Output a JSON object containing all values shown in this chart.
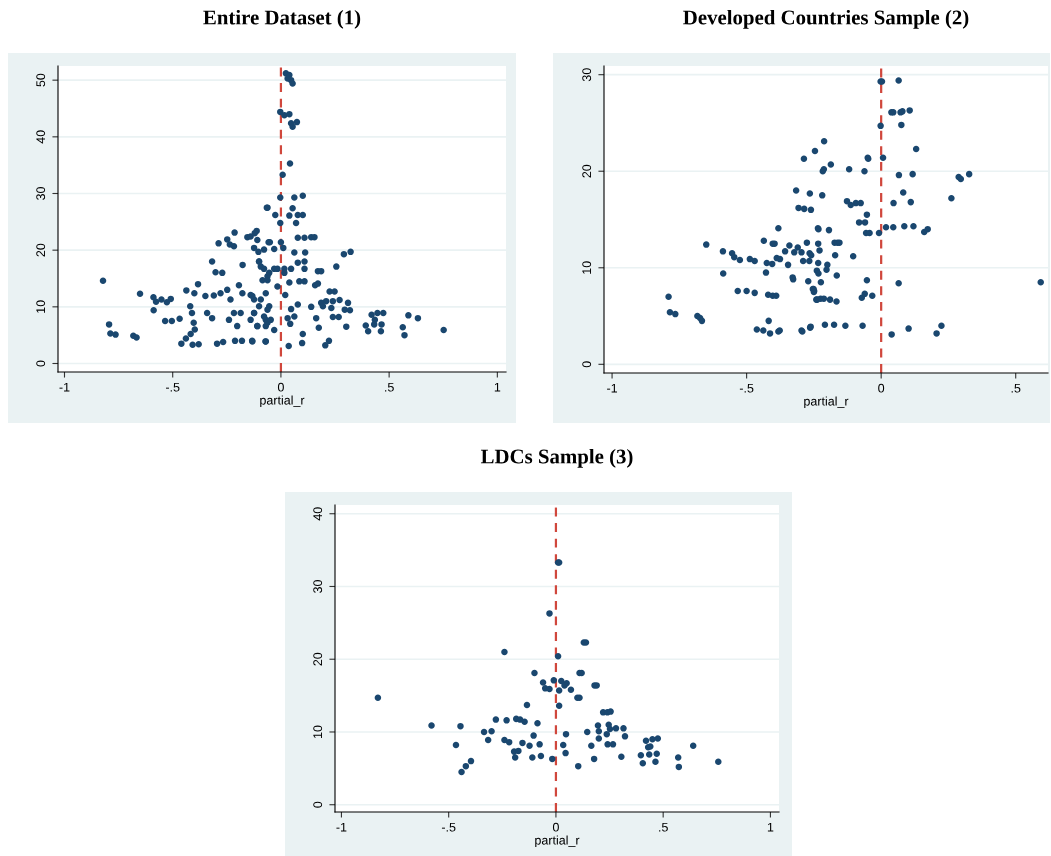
{
  "chart_data": [
    {
      "type": "scatter",
      "title": "Entire Dataset (1)",
      "xlabel": "partial_r",
      "color": "#1a476f",
      "marker": "circle",
      "grid": "y",
      "xlim": [
        -1.03,
        1.04
      ],
      "ylim": [
        -1.5,
        52.5
      ],
      "xticks": [
        {
          "value": -1,
          "label": "-1"
        },
        {
          "value": -0.5,
          "label": "-.5"
        },
        {
          "value": 0,
          "label": "0"
        },
        {
          "value": 0.5,
          "label": ".5"
        },
        {
          "value": 1,
          "label": "1"
        }
      ],
      "yticks": [
        0,
        10,
        20,
        30,
        40,
        50
      ],
      "ref_lines": [
        {
          "axis": "x",
          "value": 0,
          "color": "#d0473c",
          "line_style": "dashed"
        }
      ],
      "x": [
        -0.822,
        -0.794,
        -0.788,
        -0.764,
        -0.682,
        -0.667,
        -0.651,
        -0.589,
        -0.588,
        -0.577,
        -0.552,
        -0.527,
        -0.509,
        -0.535,
        -0.504,
        -0.468,
        -0.437,
        -0.46,
        -0.439,
        -0.417,
        -0.408,
        -0.38,
        -0.403,
        -0.398,
        -0.383,
        -0.4,
        -0.419,
        -0.411,
        -0.349,
        -0.31,
        -0.279,
        -0.341,
        -0.318,
        -0.318,
        -0.288,
        -0.302,
        -0.271,
        -0.295,
        -0.267,
        -0.248,
        -0.236,
        -0.217,
        -0.214,
        -0.248,
        -0.233,
        -0.217,
        -0.24,
        -0.202,
        -0.212,
        -0.18,
        -0.133,
        -0.071,
        -0.194,
        -0.178,
        -0.14,
        -0.124,
        -0.101,
        -0.177,
        -0.155,
        -0.14,
        -0.112,
        -0.104,
        -0.101,
        -0.14,
        -0.109,
        -0.07,
        -0.186,
        -0.124,
        -0.062,
        -0.057,
        -0.093,
        -0.062,
        -0.07,
        -0.054,
        -0.062,
        0.023,
        0.039,
        0.047,
        0.054,
        0.031,
        -0.003,
        0.016,
        0.039,
        0.054,
        0.074,
        0.047,
        0.042,
        0.008,
        -0.003,
        0.062,
        0.101,
        -0.065,
        0.054,
        -0.026,
        0.039,
        0.078,
        0.101,
        -0.003,
        0.07,
        0.078,
        0.109,
        0.14,
        0.155,
        0,
        0.011,
        -0.051,
        -0.121,
        -0.109,
        0.291,
        0.322,
        0.112,
        0.062,
        -0.078,
        -0.031,
        -0.124,
        0.078,
        0.109,
        0.256,
        0.171,
        0.186,
        -0.101,
        -0.078,
        -0.031,
        0.016,
        0.047,
        -0.054,
        -0.016,
        0.109,
        0.016,
        -0.085,
        -0.062,
        -0.016,
        0.039,
        0.085,
        0.109,
        0.158,
        0.171,
        0.225,
        0.248,
        0.209,
        0.24,
        0.271,
        0.31,
        0.186,
        0.14,
        0.078,
        -0.132,
        -0.093,
        -0.124,
        -0.078,
        -0.062,
        -0.047,
        -0.109,
        -0.07,
        -0.031,
        0.031,
        0.062,
        0.043,
        0.02,
        0.047,
        0.194,
        0.233,
        0.24,
        0.267,
        0.295,
        0.319,
        0.163,
        0.175,
        0.302,
        0.419,
        0.446,
        0.473,
        0.434,
        0.392,
        0.403,
        0.431,
        0.462,
        0.465,
        0.589,
        0.633,
        0.563,
        0.571,
        0.752,
        0.036,
        0.101,
        0.098,
        0.205,
        0.222,
        -0.132,
        -0.07
      ],
      "values": [
        14.6,
        6.9,
        5.3,
        5.1,
        4.9,
        4.6,
        12.3,
        11.7,
        9.4,
        10.9,
        11.3,
        10.8,
        11.4,
        7.5,
        7.5,
        7.9,
        12.9,
        3.5,
        4.4,
        5.2,
        3.3,
        3.4,
        7.2,
        6.0,
        14.0,
        12.4,
        10.1,
        8.9,
        11.9,
        12.0,
        12.4,
        8.9,
        8.0,
        18.0,
        21.2,
        16.1,
        16.0,
        3.5,
        3.8,
        21.9,
        21.0,
        20.7,
        23.1,
        13.0,
        11.3,
        8.9,
        7.7,
        6.6,
        4.0,
        4.0,
        4.0,
        3.9,
        13.8,
        12.4,
        12.1,
        11.3,
        10.1,
        17.4,
        22.3,
        22.4,
        23.4,
        19.7,
        18.0,
        7.7,
        6.6,
        7.7,
        8.9,
        8.9,
        27.5,
        21.4,
        17.1,
        15.4,
        12.4,
        10.1,
        7.2,
        51.2,
        50.9,
        50.0,
        49.4,
        50.3,
        44.4,
        43.8,
        44.0,
        41.8,
        42.6,
        42.4,
        35.3,
        33.3,
        29.3,
        29.3,
        29.6,
        27.5,
        27.4,
        26.2,
        26.1,
        26.2,
        26.2,
        24.8,
        24.8,
        22.2,
        22.2,
        22.3,
        22.3,
        21.4,
        20.4,
        21.4,
        23.0,
        21.8,
        19.3,
        19.7,
        19.6,
        19.6,
        20.1,
        20.2,
        20.4,
        17.8,
        18.0,
        17.1,
        16.3,
        16.3,
        18.0,
        16.7,
        16.7,
        16.7,
        16.7,
        16.0,
        16.7,
        16.7,
        16.0,
        14.7,
        14.7,
        13.6,
        14.3,
        14.5,
        14.5,
        13.8,
        14.1,
        12.7,
        12.7,
        11.0,
        11.0,
        11.2,
        10.7,
        10.7,
        10.0,
        10.4,
        11.9,
        11.3,
        8.9,
        8.3,
        9.5,
        7.7,
        6.6,
        6.6,
        5.9,
        8.0,
        8.3,
        7.0,
        12.1,
        9.6,
        10.1,
        9.8,
        8.2,
        8.2,
        9.5,
        9.4,
        8.0,
        6.3,
        6.5,
        8.6,
        8.9,
        8.9,
        7.7,
        6.7,
        5.7,
        6.9,
        5.7,
        6.9,
        8.5,
        8.0,
        6.4,
        5.0,
        5.9,
        3.1,
        5.2,
        3.6,
        3.2,
        4.0,
        3.9,
        3.9
      ]
    },
    {
      "type": "scatter",
      "title": "Developed Countries Sample (2)",
      "xlabel": "partial_r",
      "color": "#1a476f",
      "marker": "circle",
      "grid": "y",
      "xlim": [
        -1.03,
        0.62
      ],
      "ylim": [
        -0.9,
        30.9
      ],
      "xticks": [
        {
          "value": -1,
          "label": "-1"
        },
        {
          "value": -0.5,
          "label": "-.5"
        },
        {
          "value": 0,
          "label": "0"
        },
        {
          "value": 0.5,
          "label": ".5"
        }
      ],
      "yticks": [
        0,
        10,
        20,
        30
      ],
      "ref_lines": [
        {
          "axis": "x",
          "value": 0,
          "color": "#d0473c",
          "line_style": "dashed"
        }
      ],
      "x": [
        -0.79,
        -0.785,
        -0.765,
        -0.683,
        -0.673,
        -0.666,
        -0.65,
        -0.588,
        -0.587,
        -0.554,
        -0.546,
        -0.525,
        -0.533,
        -0.5,
        -0.47,
        -0.488,
        -0.47,
        -0.436,
        -0.425,
        -0.405,
        -0.428,
        -0.403,
        -0.396,
        -0.42,
        -0.403,
        -0.39,
        -0.418,
        -0.462,
        -0.438,
        -0.413,
        -0.382,
        -0.377,
        -0.382,
        -0.388,
        -0.376,
        -0.346,
        -0.357,
        -0.341,
        -0.323,
        -0.31,
        -0.296,
        -0.329,
        -0.327,
        -0.316,
        -0.307,
        -0.286,
        -0.261,
        -0.287,
        -0.246,
        -0.265,
        -0.276,
        -0.266,
        -0.26,
        -0.29,
        -0.267,
        -0.271,
        -0.251,
        -0.25,
        -0.238,
        -0.296,
        -0.264,
        -0.235,
        -0.212,
        -0.217,
        -0.213,
        -0.187,
        -0.219,
        -0.233,
        -0.194,
        -0.234,
        -0.229,
        -0.234,
        -0.2,
        -0.203,
        -0.239,
        -0.233,
        -0.173,
        -0.162,
        -0.155,
        -0.171,
        -0.104,
        -0.165,
        -0.224,
        -0.254,
        -0.249,
        -0.241,
        -0.225,
        -0.213,
        -0.19,
        -0.166,
        -0.293,
        -0.262,
        -0.209,
        -0.175,
        -0.133,
        -0.069,
        -0.127,
        -0.113,
        -0.094,
        -0.076,
        -0.119,
        -0.062,
        -0.05,
        -0.048,
        -0.053,
        -0.082,
        -0.06,
        -0.056,
        -0.043,
        -0.008,
        -0.053,
        -0.072,
        -0.061,
        -0.033,
        -0.002,
        0.003,
        0.065,
        -0.002,
        0.075,
        0.038,
        0.045,
        0.072,
        0.079,
        0.106,
        0.13,
        0.007,
        0.066,
        0.117,
        0.288,
        0.296,
        0.327,
        0.082,
        0.046,
        0.11,
        0.261,
        0.018,
        0.045,
        0.086,
        0.12,
        0.16,
        0.173,
        0.065,
        0.593,
        0.039,
        0.102,
        0.206,
        0.224
      ],
      "values": [
        7.0,
        5.4,
        5.2,
        5.0,
        4.8,
        4.5,
        12.4,
        11.7,
        9.4,
        11.5,
        11.1,
        10.8,
        7.6,
        7.6,
        7.4,
        10.9,
        10.7,
        12.8,
        10.5,
        10.4,
        9.5,
        12.5,
        12.5,
        7.2,
        7.1,
        7.1,
        4.5,
        3.6,
        3.5,
        3.2,
        3.4,
        3.5,
        14.1,
        11.0,
        10.9,
        10.3,
        11.7,
        12.3,
        11.6,
        12.1,
        11.6,
        9.0,
        8.8,
        18.0,
        16.2,
        16.1,
        16.0,
        21.3,
        22.1,
        17.7,
        12.6,
        11.5,
        11.3,
        10.7,
        10.7,
        8.6,
        7.8,
        7.5,
        6.7,
        3.5,
        3.8,
        14.1,
        23.1,
        20.0,
        20.2,
        20.7,
        17.5,
        14.0,
        13.9,
        12.5,
        11.8,
        10.5,
        10.3,
        9.8,
        9.7,
        9.4,
        12.6,
        12.6,
        12.6,
        11.3,
        11.2,
        9.2,
        8.5,
        7.8,
        7.6,
        6.7,
        6.8,
        6.8,
        6.7,
        6.5,
        3.4,
        3.9,
        4.1,
        4.1,
        4.0,
        4.0,
        16.9,
        16.5,
        16.7,
        16.7,
        20.2,
        20.0,
        21.4,
        21.3,
        15.5,
        14.7,
        14.7,
        13.6,
        13.6,
        13.6,
        8.7,
        6.9,
        7.3,
        7.1,
        29.3,
        29.3,
        29.4,
        24.7,
        24.8,
        26.1,
        26.1,
        26.1,
        26.2,
        26.3,
        22.3,
        21.4,
        19.6,
        19.7,
        19.4,
        19.2,
        19.7,
        17.8,
        16.7,
        16.8,
        17.2,
        14.2,
        14.2,
        14.3,
        14.3,
        13.7,
        14.0,
        8.4,
        8.5,
        3.1,
        3.7,
        3.2,
        4.0
      ]
    },
    {
      "type": "scatter",
      "title": "LDCs Sample (3)",
      "xlabel": "partial_r",
      "color": "#1a476f",
      "marker": "circle",
      "grid": "y",
      "xlim": [
        -1.03,
        1.04
      ],
      "ylim": [
        -1.0,
        41.2
      ],
      "xticks": [
        {
          "value": -1,
          "label": "-1"
        },
        {
          "value": -0.5,
          "label": "-.5"
        },
        {
          "value": 0,
          "label": "0"
        },
        {
          "value": 0.5,
          "label": ".5"
        },
        {
          "value": 1,
          "label": "1"
        }
      ],
      "yticks": [
        0,
        10,
        20,
        30,
        40
      ],
      "ref_lines": [
        {
          "axis": "x",
          "value": 0,
          "color": "#d0473c",
          "line_style": "dashed"
        }
      ],
      "x": [
        0.01,
        0.015,
        -0.03,
        0.13,
        0.14,
        -0.24,
        0.01,
        -0.1,
        0.11,
        0.12,
        -0.06,
        -0.01,
        0.025,
        0.05,
        0.04,
        -0.05,
        -0.03,
        0.015,
        0.07,
        0.18,
        0.19,
        -0.83,
        0.1,
        0.11,
        -0.135,
        0.015,
        0.22,
        0.24,
        0.255,
        -0.58,
        -0.445,
        -0.28,
        -0.23,
        -0.185,
        -0.167,
        -0.146,
        -0.086,
        -0.335,
        -0.3,
        0.196,
        0.246,
        0.252,
        0.28,
        0.315,
        0.2,
        0.237,
        0.146,
        0.047,
        -0.104,
        0.322,
        0.2,
        -0.316,
        -0.24,
        -0.218,
        -0.156,
        0.42,
        0.45,
        0.475,
        -0.466,
        -0.123,
        -0.076,
        0.034,
        0.165,
        0.241,
        0.266,
        0.43,
        0.44,
        0.64,
        -0.195,
        -0.175,
        0.045,
        0.435,
        0.47,
        0.396,
        -0.19,
        -0.11,
        -0.07,
        -0.017,
        0.178,
        0.305,
        0.57,
        -0.396,
        -0.42,
        -0.44,
        0.405,
        0.464,
        0.757,
        0.104,
        0.573
      ],
      "values": [
        33.3,
        33.3,
        26.3,
        22.3,
        22.3,
        21.0,
        20.4,
        18.1,
        18.1,
        18.1,
        16.8,
        17.1,
        17.0,
        16.7,
        16.4,
        16.0,
        15.9,
        15.7,
        15.8,
        16.4,
        16.4,
        14.7,
        14.7,
        14.7,
        13.7,
        13.6,
        12.7,
        12.7,
        12.8,
        10.9,
        10.8,
        11.7,
        11.6,
        11.8,
        11.7,
        11.4,
        11.2,
        10.0,
        10.1,
        10.9,
        11.0,
        10.4,
        10.5,
        10.5,
        10.1,
        9.7,
        10.0,
        9.7,
        9.5,
        9.4,
        9.1,
        8.9,
        8.9,
        8.6,
        8.5,
        8.8,
        9.0,
        9.1,
        8.2,
        8.1,
        8.3,
        8.2,
        8.1,
        8.3,
        8.3,
        7.9,
        8.0,
        8.1,
        7.3,
        7.4,
        7.1,
        6.9,
        7.0,
        6.8,
        6.5,
        6.5,
        6.7,
        6.3,
        6.3,
        6.6,
        6.5,
        6.0,
        5.3,
        4.5,
        5.7,
        5.9,
        5.9,
        5.3,
        5.2
      ]
    }
  ]
}
